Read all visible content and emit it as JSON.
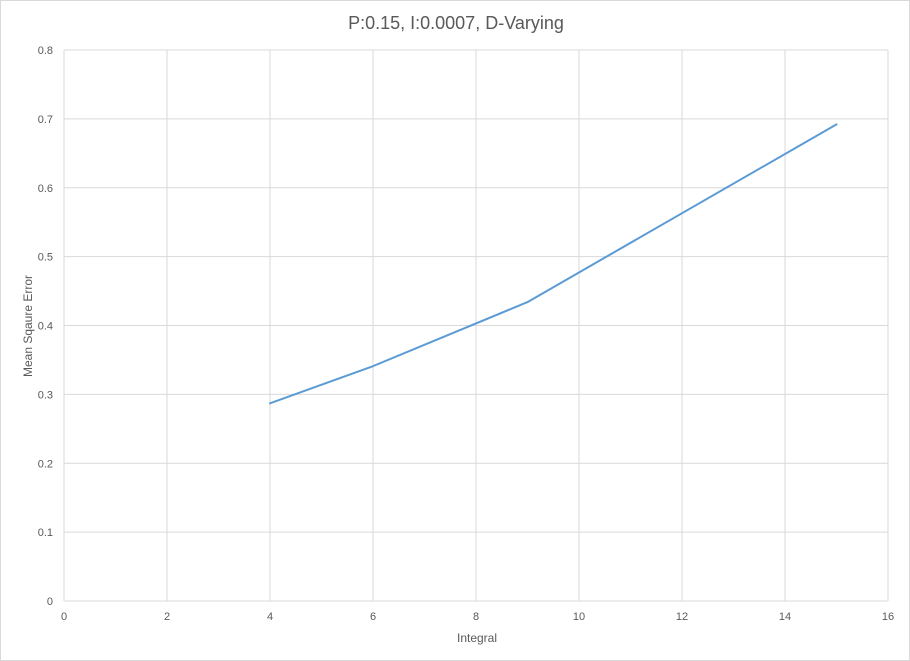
{
  "chart_data": {
    "type": "line",
    "title": "P:0.15, I:0.0007, D-Varying",
    "xlabel": "Integral",
    "ylabel": "Mean Sqaure Error",
    "xlim": [
      0,
      16
    ],
    "ylim": [
      0,
      0.8
    ],
    "x_ticks": [
      "0",
      "2",
      "4",
      "6",
      "8",
      "10",
      "12",
      "14",
      "16"
    ],
    "y_ticks": [
      "0",
      "0.1",
      "0.2",
      "0.3",
      "0.4",
      "0.5",
      "0.6",
      "0.7",
      "0.8"
    ],
    "grid": true,
    "legend": "none",
    "series": [
      {
        "color": "#5b9bd5",
        "x": [
          4,
          6,
          9,
          15
        ],
        "y": [
          0.287,
          0.341,
          0.434,
          0.692
        ]
      }
    ]
  }
}
